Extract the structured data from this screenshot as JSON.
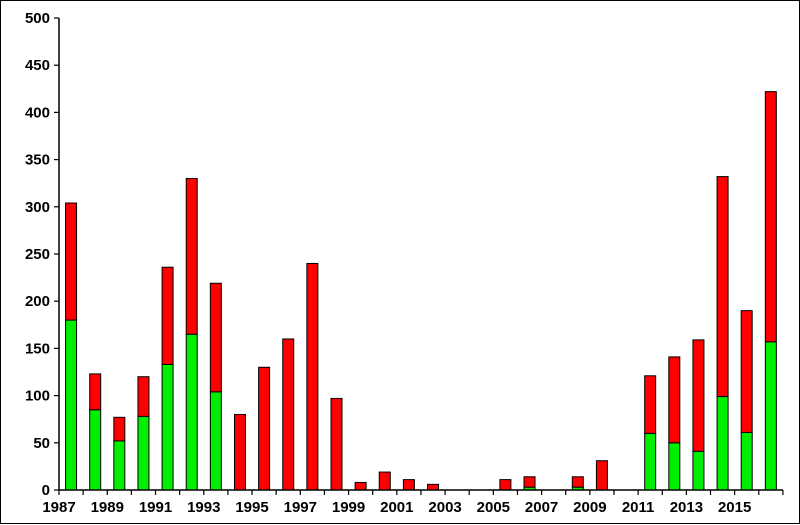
{
  "chart_data": {
    "type": "bar",
    "stacked": true,
    "title": "",
    "xlabel": "",
    "ylabel": "",
    "ylim": [
      0,
      500
    ],
    "yticks": [
      0,
      50,
      100,
      150,
      200,
      250,
      300,
      350,
      400,
      450,
      500
    ],
    "grid": false,
    "legend": "none",
    "categories": [
      "1987",
      "1988",
      "1989",
      "1990",
      "1991",
      "1992",
      "1993",
      "1994",
      "1995",
      "1996",
      "1997",
      "1998",
      "1999",
      "2000",
      "2001",
      "2002",
      "2003",
      "2004",
      "2005",
      "2006",
      "2007",
      "2008",
      "2009",
      "2010",
      "2011",
      "2012",
      "2013",
      "2014",
      "2015",
      "2016"
    ],
    "xtick_labels": [
      "1987",
      "1989",
      "1991",
      "1993",
      "1995",
      "1997",
      "1999",
      "2001",
      "2003",
      "2005",
      "2007",
      "2009",
      "2011",
      "2013",
      "2015"
    ],
    "series": [
      {
        "color": "#00ee00",
        "values": [
          180,
          85,
          52,
          78,
          133,
          165,
          104,
          0,
          0,
          0,
          0,
          0,
          0,
          0,
          0,
          0,
          0,
          0,
          0,
          3,
          0,
          3,
          0,
          0,
          60,
          50,
          41,
          99,
          61,
          157
        ]
      },
      {
        "color": "#ff0000",
        "values": [
          124,
          38,
          25,
          42,
          103,
          165,
          115,
          80,
          130,
          160,
          240,
          97,
          8,
          19,
          11,
          6,
          0,
          0,
          11,
          11,
          0,
          11,
          31,
          0,
          61,
          91,
          118,
          233,
          129,
          265
        ]
      }
    ]
  }
}
